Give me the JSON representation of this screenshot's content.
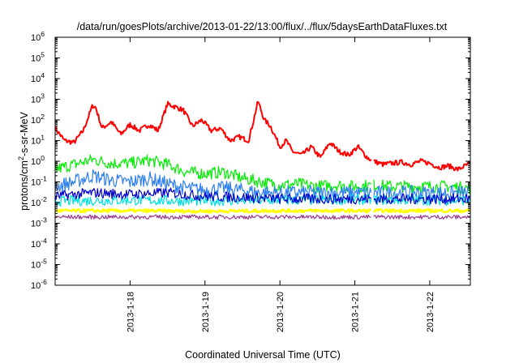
{
  "chart_data": {
    "type": "line",
    "title": "/data/run/goesPlots/archive/2013-01-22/13:00/flux/../flux/5daysEarthDataFluxes.txt",
    "xlabel": "Coordinated Universal Time (UTC)",
    "ylabel": {
      "prefix": "protons/cm",
      "sup": "2",
      "suffix": "-s-sr-MeV"
    },
    "y_scale": "log",
    "ylim": [
      1e-06,
      1000000.0
    ],
    "y_ticks": [
      {
        "value": 1e-06,
        "base": "10",
        "exp": "-6"
      },
      {
        "value": 1e-05,
        "base": "10",
        "exp": "-5"
      },
      {
        "value": 0.0001,
        "base": "10",
        "exp": "-4"
      },
      {
        "value": 0.001,
        "base": "10",
        "exp": "-3"
      },
      {
        "value": 0.01,
        "base": "10",
        "exp": "-2"
      },
      {
        "value": 0.1,
        "base": "10",
        "exp": "-1"
      },
      {
        "value": 1,
        "base": "10",
        "exp": "0"
      },
      {
        "value": 10,
        "base": "10",
        "exp": "1"
      },
      {
        "value": 100,
        "base": "10",
        "exp": "2"
      },
      {
        "value": 1000,
        "base": "10",
        "exp": "3"
      },
      {
        "value": 10000,
        "base": "10",
        "exp": "4"
      },
      {
        "value": 100000,
        "base": "10",
        "exp": "5"
      },
      {
        "value": 1000000,
        "base": "10",
        "exp": "6"
      }
    ],
    "xlim": [
      "2013-01-17T00:00",
      "2013-01-22T13:00"
    ],
    "x_ticks": [
      {
        "value": "2013-01-18T00:00",
        "label": "2013-1-18"
      },
      {
        "value": "2013-01-19T00:00",
        "label": "2013-1-19"
      },
      {
        "value": "2013-01-20T00:00",
        "label": "2013-1-20"
      },
      {
        "value": "2013-01-21T00:00",
        "label": "2013-1-21"
      },
      {
        "value": "2013-01-22T00:00",
        "label": "2013-1-22"
      }
    ],
    "grid": false,
    "legend": "none",
    "series": [
      {
        "color": "#ff0000",
        "width": 2,
        "noise": 0.12,
        "x": [
          "2013-01-17T00:00",
          "2013-01-17T03:00",
          "2013-01-17T06:00",
          "2013-01-17T09:00",
          "2013-01-17T12:00",
          "2013-01-17T13:00",
          "2013-01-17T15:00",
          "2013-01-17T18:00",
          "2013-01-17T21:00",
          "2013-01-18T00:00",
          "2013-01-18T03:00",
          "2013-01-18T06:00",
          "2013-01-18T09:00",
          "2013-01-18T12:00",
          "2013-01-18T15:00",
          "2013-01-18T17:00",
          "2013-01-18T20:00",
          "2013-01-18T23:00",
          "2013-01-19T02:00",
          "2013-01-19T05:00",
          "2013-01-19T08:00",
          "2013-01-19T11:00",
          "2013-01-19T14:00",
          "2013-01-19T17:00",
          "2013-01-19T19:00",
          "2013-01-19T21:00",
          "2013-01-20T00:00",
          "2013-01-20T02:00",
          "2013-01-20T04:00",
          "2013-01-20T07:00",
          "2013-01-20T10:00",
          "2013-01-20T13:00",
          "2013-01-20T16:00",
          "2013-01-20T19:00",
          "2013-01-20T22:00",
          "2013-01-21T01:00",
          "2013-01-21T04:00",
          "2013-01-21T06:00",
          "2013-01-21T09:00",
          "2013-01-21T12:00",
          "2013-01-21T15:00",
          "2013-01-21T18:00",
          "2013-01-21T21:00",
          "2013-01-22T00:00",
          "2013-01-22T03:00",
          "2013-01-22T06:00",
          "2013-01-22T09:00",
          "2013-01-22T13:00"
        ],
        "y": [
          40,
          10,
          8,
          30,
          500,
          400,
          40,
          80,
          20,
          60,
          30,
          60,
          30,
          600,
          400,
          300,
          50,
          100,
          30,
          40,
          10,
          15,
          10,
          800,
          100,
          50,
          5,
          10,
          3,
          2,
          5,
          1.5,
          8,
          3,
          2,
          5,
          1.5,
          1,
          0.7,
          0.8,
          0.9,
          0.7,
          1,
          0.8,
          0.5,
          0.6,
          0.4,
          0.8
        ]
      },
      {
        "color": "#00ee00",
        "width": 1.2,
        "noise": 0.3,
        "x": [
          "2013-01-17T00:00",
          "2013-01-17T06:00",
          "2013-01-17T12:00",
          "2013-01-17T18:00",
          "2013-01-18T00:00",
          "2013-01-18T06:00",
          "2013-01-18T12:00",
          "2013-01-18T18:00",
          "2013-01-19T00:00",
          "2013-01-19T06:00",
          "2013-01-19T12:00",
          "2013-01-19T18:00",
          "2013-01-20T00:00",
          "2013-01-20T06:00",
          "2013-01-20T12:00",
          "2013-01-20T18:00",
          "2013-01-21T00:00",
          "2013-01-21T06:00",
          "2013-01-21T12:00",
          "2013-01-21T18:00",
          "2013-01-22T00:00",
          "2013-01-22T06:00",
          "2013-01-22T13:00"
        ],
        "y": [
          0.4,
          0.7,
          1.2,
          0.8,
          0.8,
          1.1,
          0.7,
          0.3,
          0.25,
          0.3,
          0.15,
          0.1,
          0.07,
          0.08,
          0.06,
          0.07,
          0.06,
          0.07,
          0.06,
          0.06,
          0.06,
          0.06,
          0.05
        ]
      },
      {
        "color": "#2f7ff0",
        "width": 1.2,
        "noise": 0.35,
        "x": [
          "2013-01-17T00:00",
          "2013-01-17T06:00",
          "2013-01-17T12:00",
          "2013-01-17T18:00",
          "2013-01-18T00:00",
          "2013-01-18T06:00",
          "2013-01-18T12:00",
          "2013-01-18T18:00",
          "2013-01-19T00:00",
          "2013-01-19T06:00",
          "2013-01-19T12:00",
          "2013-01-19T18:00",
          "2013-01-20T00:00",
          "2013-01-20T06:00",
          "2013-01-20T12:00",
          "2013-01-20T18:00",
          "2013-01-21T00:00",
          "2013-01-21T06:00",
          "2013-01-21T12:00",
          "2013-01-21T18:00",
          "2013-01-22T00:00",
          "2013-01-22T06:00",
          "2013-01-22T13:00"
        ],
        "y": [
          0.06,
          0.1,
          0.2,
          0.12,
          0.1,
          0.15,
          0.08,
          0.05,
          0.04,
          0.05,
          0.04,
          0.03,
          0.03,
          0.03,
          0.03,
          0.03,
          0.03,
          0.03,
          0.03,
          0.03,
          0.03,
          0.03,
          0.03
        ]
      },
      {
        "color": "#00e0e0",
        "width": 1.2,
        "noise": 0.25,
        "x": [
          "2013-01-17T00:00",
          "2013-01-18T00:00",
          "2013-01-19T00:00",
          "2013-01-20T00:00",
          "2013-01-21T00:00",
          "2013-01-22T00:00",
          "2013-01-22T13:00"
        ],
        "y": [
          0.012,
          0.013,
          0.012,
          0.013,
          0.014,
          0.013,
          0.013
        ]
      },
      {
        "color": "#0000cc",
        "width": 1.2,
        "noise": 0.25,
        "x": [
          "2013-01-17T00:00",
          "2013-01-17T12:00",
          "2013-01-18T00:00",
          "2013-01-18T12:00",
          "2013-01-19T00:00",
          "2013-01-19T12:00",
          "2013-01-20T00:00",
          "2013-01-21T00:00",
          "2013-01-22T00:00",
          "2013-01-22T13:00"
        ],
        "y": [
          0.02,
          0.03,
          0.025,
          0.03,
          0.02,
          0.018,
          0.015,
          0.015,
          0.015,
          0.015
        ]
      },
      {
        "color": "#ffff00",
        "width": 2.5,
        "noise": 0.08,
        "x": [
          "2013-01-17T00:00",
          "2013-01-18T00:00",
          "2013-01-19T00:00",
          "2013-01-20T00:00",
          "2013-01-21T00:00",
          "2013-01-22T00:00",
          "2013-01-22T13:00"
        ],
        "y": [
          0.004,
          0.004,
          0.0038,
          0.004,
          0.004,
          0.004,
          0.004
        ]
      },
      {
        "color": "#9a3c8e",
        "width": 1.2,
        "noise": 0.1,
        "x": [
          "2013-01-17T00:00",
          "2013-01-18T00:00",
          "2013-01-19T00:00",
          "2013-01-20T00:00",
          "2013-01-21T00:00",
          "2013-01-22T00:00",
          "2013-01-22T13:00"
        ],
        "y": [
          0.002,
          0.002,
          0.002,
          0.002,
          0.002,
          0.002,
          0.002
        ]
      }
    ]
  }
}
